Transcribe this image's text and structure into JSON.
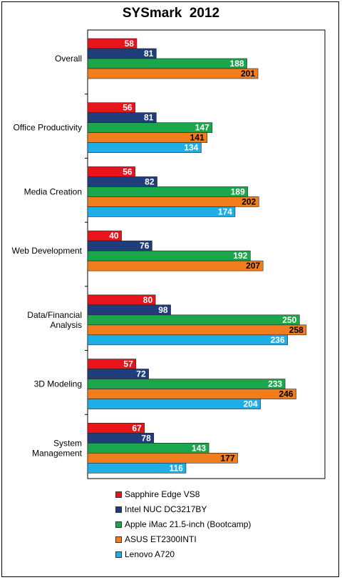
{
  "chart_data": {
    "type": "bar",
    "orientation": "horizontal",
    "title": "SYSmark  2012",
    "xlim": [
      0,
      280
    ],
    "grid": false,
    "legend_position": "bottom",
    "categories": [
      "Overall",
      "Office Productivity",
      "Media Creation",
      "Web Development",
      "Data/Financial\nAnalysis",
      "3D Modeling",
      "System\nManagement"
    ],
    "series": [
      {
        "name": "Sapphire Edge VS8",
        "color": "#e8141c",
        "values": [
          58,
          56,
          56,
          40,
          80,
          57,
          67
        ]
      },
      {
        "name": "Intel NUC DC3217BY",
        "color": "#1f3d7a",
        "values": [
          81,
          81,
          82,
          76,
          98,
          72,
          78
        ]
      },
      {
        "name": "Apple iMac 21.5-inch (Bootcamp)",
        "color": "#1aa64a",
        "values": [
          188,
          147,
          189,
          192,
          250,
          233,
          143
        ]
      },
      {
        "name": "ASUS ET2300INTI",
        "color": "#f07e1e",
        "values": [
          201,
          141,
          202,
          207,
          258,
          246,
          177
        ]
      },
      {
        "name": "Lenovo A720",
        "color": "#1eaee8",
        "values": [
          null,
          134,
          174,
          null,
          236,
          204,
          116
        ]
      }
    ]
  }
}
